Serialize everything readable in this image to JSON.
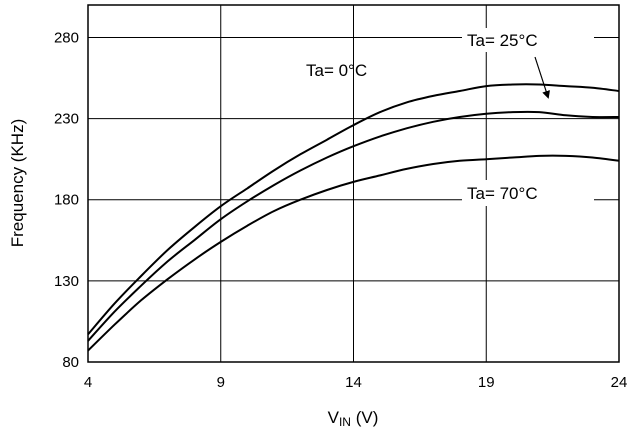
{
  "chart_data": {
    "type": "line",
    "title": "",
    "xlabel": {
      "main": "V",
      "sub": "IN",
      "unit": " (V)"
    },
    "ylabel": "Frequency (KHz)",
    "xlim": [
      4,
      24
    ],
    "ylim": [
      80,
      300
    ],
    "xticks": [
      4,
      9,
      14,
      19,
      24
    ],
    "yticks": [
      80,
      130,
      180,
      230,
      280
    ],
    "grid": true,
    "series": [
      {
        "name": "Ta= 0°C",
        "x": [
          4,
          5,
          6,
          7,
          8,
          9,
          10,
          11,
          12,
          13,
          14,
          15,
          16,
          17,
          18,
          19,
          20,
          21,
          22,
          23,
          24
        ],
        "y": [
          97,
          116,
          133,
          149,
          163,
          176,
          187,
          198,
          208,
          217,
          226,
          234,
          240,
          244,
          247,
          250,
          251,
          251,
          250,
          249,
          247
        ]
      },
      {
        "name": "Ta= 25°C",
        "x": [
          4,
          5,
          6,
          7,
          8,
          9,
          10,
          11,
          12,
          13,
          14,
          15,
          16,
          17,
          18,
          19,
          20,
          21,
          22,
          23,
          24
        ],
        "y": [
          93,
          111,
          127,
          142,
          155,
          168,
          179,
          189,
          198,
          206,
          213,
          219,
          224,
          228,
          231,
          233,
          234,
          234,
          232,
          231,
          231
        ]
      },
      {
        "name": "Ta= 70°C",
        "x": [
          4,
          5,
          6,
          7,
          8,
          9,
          10,
          11,
          12,
          13,
          14,
          15,
          16,
          17,
          18,
          19,
          20,
          21,
          22,
          23,
          24
        ],
        "y": [
          87,
          103,
          118,
          131,
          143,
          154,
          164,
          173,
          180,
          186,
          191,
          195,
          199,
          202,
          204,
          205,
          206,
          207,
          207,
          206,
          204
        ]
      }
    ],
    "annotations": [
      {
        "text": "Ta= 0°C"
      },
      {
        "text": "Ta= 25°C"
      },
      {
        "text": "Ta= 70°C"
      }
    ]
  }
}
